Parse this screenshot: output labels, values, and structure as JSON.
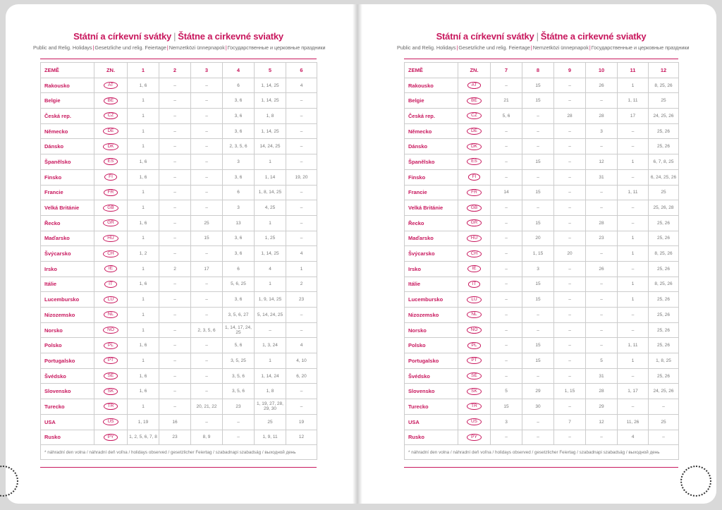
{
  "pages": [
    {
      "title": [
        "Státní a církevní svátky",
        "Štátne a cirkevné sviatky"
      ],
      "subtitle": [
        "Public and Relig. Holidays",
        "Gesetzliche und relig. Feiertage",
        "Nemzetközi ünnepnapok",
        "Государственные и церковные праздники"
      ],
      "table": {
        "header": [
          "ZEMĚ",
          "ZN.",
          "1",
          "2",
          "3",
          "4",
          "5",
          "6"
        ],
        "rows": [
          [
            "Rakousko",
            "AT",
            "1, 6",
            "–",
            "–",
            "6",
            "1, 14, 25",
            "4"
          ],
          [
            "Belgie",
            "BE",
            "1",
            "–",
            "–",
            "3, 6",
            "1, 14, 25",
            "–"
          ],
          [
            "Česká rep.",
            "CZ",
            "1",
            "–",
            "–",
            "3, 6",
            "1, 8",
            "–"
          ],
          [
            "Německo",
            "DE",
            "1",
            "–",
            "–",
            "3, 6",
            "1, 14, 25",
            "–"
          ],
          [
            "Dánsko",
            "DK",
            "1",
            "–",
            "–",
            "2, 3, 5, 6",
            "14, 24, 25",
            "–"
          ],
          [
            "Španělsko",
            "ES",
            "1, 6",
            "–",
            "–",
            "3",
            "1",
            "–"
          ],
          [
            "Finsko",
            "FI",
            "1, 6",
            "–",
            "–",
            "3, 6",
            "1, 14",
            "19, 20"
          ],
          [
            "Francie",
            "FR",
            "1",
            "–",
            "–",
            "6",
            "1, 8, 14, 25",
            "–"
          ],
          [
            "Velká Británie",
            "GB",
            "1",
            "–",
            "–",
            "3",
            "4, 25",
            "–"
          ],
          [
            "Řecko",
            "GR",
            "1, 6",
            "–",
            "25",
            "13",
            "1",
            "–"
          ],
          [
            "Maďarsko",
            "HU",
            "1",
            "–",
            "15",
            "3, 6",
            "1, 25",
            "–"
          ],
          [
            "Švýcarsko",
            "CH",
            "1, 2",
            "–",
            "–",
            "3, 6",
            "1, 14, 25",
            "4"
          ],
          [
            "Irsko",
            "IE",
            "1",
            "2",
            "17",
            "6",
            "4",
            "1"
          ],
          [
            "Itálie",
            "IT",
            "1, 6",
            "–",
            "–",
            "5, 6, 25",
            "1",
            "2"
          ],
          [
            "Lucembursko",
            "LU",
            "1",
            "–",
            "–",
            "3, 6",
            "1, 9, 14, 25",
            "23"
          ],
          [
            "Nizozemsko",
            "NL",
            "1",
            "–",
            "–",
            "3, 5, 6, 27",
            "5, 14, 24, 25",
            "–"
          ],
          [
            "Norsko",
            "NO",
            "1",
            "–",
            "2, 3, 5, 6",
            "1, 14, 17, 24, 25",
            "–",
            "–"
          ],
          [
            "Polsko",
            "PL",
            "1, 6",
            "–",
            "–",
            "5, 6",
            "1, 3, 24",
            "4"
          ],
          [
            "Portugalsko",
            "PT",
            "1",
            "–",
            "–",
            "3, 5, 25",
            "1",
            "4, 10"
          ],
          [
            "Švédsko",
            "SE",
            "1, 6",
            "–",
            "–",
            "3, 5, 6",
            "1, 14, 24",
            "6, 20"
          ],
          [
            "Slovensko",
            "SK",
            "1, 6",
            "–",
            "–",
            "3, 5, 6",
            "1, 8",
            "–"
          ],
          [
            "Turecko",
            "TR",
            "1",
            "–",
            "20, 21, 22",
            "23",
            "1, 19, 27, 28, 29, 30",
            "–"
          ],
          [
            "USA",
            "US",
            "1, 19",
            "16",
            "–",
            "–",
            "25",
            "19"
          ],
          [
            "Rusko",
            "PY",
            "1, 2, 5, 6, 7, 8",
            "23",
            "8, 9",
            "–",
            "1, 9, 11",
            "12"
          ]
        ]
      },
      "footnote": "* náhradní den volna / náhradní deň voľna / holidays observed / gesetzlicher Feiertag / szabadnapi szabadság / выходной день"
    },
    {
      "title": [
        "Státní a církevní svátky",
        "Štátne a cirkevné sviatky"
      ],
      "subtitle": [
        "Public and Relig. Holidays",
        "Gesetzliche und relig. Feiertage",
        "Nemzetközi ünnepnapok",
        "Государственные и церковные праздники"
      ],
      "table": {
        "header": [
          "ZEMĚ",
          "ZN.",
          "7",
          "8",
          "9",
          "10",
          "11",
          "12"
        ],
        "rows": [
          [
            "Rakousko",
            "AT",
            "–",
            "15",
            "–",
            "26",
            "1",
            "8, 25, 26"
          ],
          [
            "Belgie",
            "BE",
            "21",
            "15",
            "–",
            "–",
            "1, 11",
            "25"
          ],
          [
            "Česká rep.",
            "CZ",
            "5, 6",
            "–",
            "28",
            "28",
            "17",
            "24, 25, 26"
          ],
          [
            "Německo",
            "DE",
            "–",
            "–",
            "–",
            "3",
            "–",
            "25, 26"
          ],
          [
            "Dánsko",
            "DK",
            "–",
            "–",
            "–",
            "–",
            "–",
            "25, 26"
          ],
          [
            "Španělsko",
            "ES",
            "–",
            "15",
            "–",
            "12",
            "1",
            "6, 7, 8, 25"
          ],
          [
            "Finsko",
            "FI",
            "–",
            "–",
            "–",
            "31",
            "–",
            "6, 24, 25, 26"
          ],
          [
            "Francie",
            "FR",
            "14",
            "15",
            "–",
            "–",
            "1, 11",
            "25"
          ],
          [
            "Velká Británie",
            "GB",
            "–",
            "–",
            "–",
            "–",
            "–",
            "25, 26, 28"
          ],
          [
            "Řecko",
            "GR",
            "–",
            "15",
            "–",
            "28",
            "–",
            "25, 26"
          ],
          [
            "Maďarsko",
            "HU",
            "–",
            "20",
            "–",
            "23",
            "1",
            "25, 26"
          ],
          [
            "Švýcarsko",
            "CH",
            "–",
            "1, 15",
            "20",
            "–",
            "1",
            "8, 25, 26"
          ],
          [
            "Irsko",
            "IE",
            "–",
            "3",
            "–",
            "26",
            "–",
            "25, 26"
          ],
          [
            "Itálie",
            "IT",
            "–",
            "15",
            "–",
            "–",
            "1",
            "8, 25, 26"
          ],
          [
            "Lucembursko",
            "LU",
            "–",
            "15",
            "–",
            "–",
            "1",
            "25, 26"
          ],
          [
            "Nizozemsko",
            "NL",
            "–",
            "–",
            "–",
            "–",
            "–",
            "25, 26"
          ],
          [
            "Norsko",
            "NO",
            "–",
            "–",
            "–",
            "–",
            "–",
            "25, 26"
          ],
          [
            "Polsko",
            "PL",
            "–",
            "15",
            "–",
            "–",
            "1, 11",
            "25, 26"
          ],
          [
            "Portugalsko",
            "PT",
            "–",
            "15",
            "–",
            "5",
            "1",
            "1, 8, 25"
          ],
          [
            "Švédsko",
            "SE",
            "–",
            "–",
            "–",
            "31",
            "–",
            "25, 26"
          ],
          [
            "Slovensko",
            "SK",
            "5",
            "29",
            "1, 15",
            "28",
            "1, 17",
            "24, 25, 26"
          ],
          [
            "Turecko",
            "TR",
            "15",
            "30",
            "–",
            "29",
            "–",
            "–"
          ],
          [
            "USA",
            "US",
            "3",
            "–",
            "7",
            "12",
            "11, 26",
            "25"
          ],
          [
            "Rusko",
            "PY",
            "–",
            "–",
            "–",
            "–",
            "4",
            "–"
          ]
        ]
      },
      "footnote": "* náhradní den volna / náhradní deň voľna / holidays observed / gesetzlicher Feiertag / szabadnapi szabadság / выходной день"
    }
  ]
}
